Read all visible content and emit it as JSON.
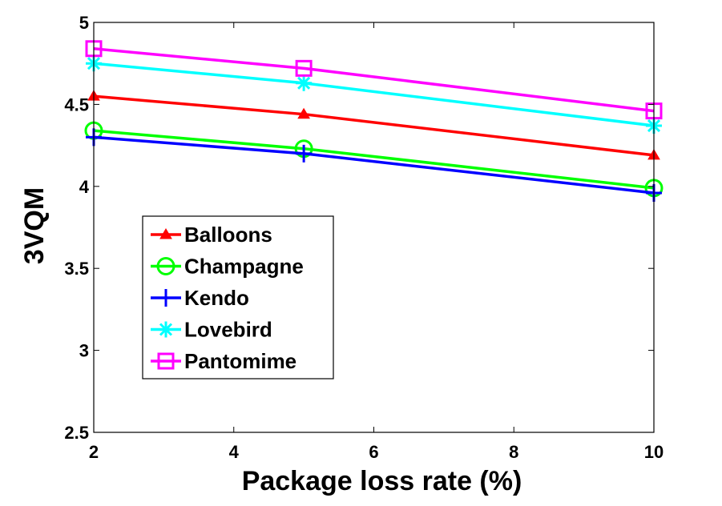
{
  "chart_data": {
    "type": "line",
    "title": "",
    "xlabel": "Package loss rate (%)",
    "ylabel": "3VQM",
    "xlim": [
      2,
      10
    ],
    "ylim": [
      2.5,
      5
    ],
    "x_ticks": [
      {
        "value": 2,
        "label": "2"
      },
      {
        "value": 4,
        "label": "4"
      },
      {
        "value": 6,
        "label": "6"
      },
      {
        "value": 8,
        "label": "8"
      },
      {
        "value": 10,
        "label": "10"
      }
    ],
    "y_ticks": [
      {
        "value": 2.5,
        "label": "2.5"
      },
      {
        "value": 3,
        "label": "3"
      },
      {
        "value": 3.5,
        "label": "3.5"
      },
      {
        "value": 4,
        "label": "4"
      },
      {
        "value": 4.5,
        "label": "4.5"
      },
      {
        "value": 5,
        "label": "5"
      }
    ],
    "x": [
      2,
      5,
      10
    ],
    "series": [
      {
        "name": "Balloons",
        "values": [
          4.55,
          4.44,
          4.19
        ],
        "color": "#ff0000",
        "marker": "triangle"
      },
      {
        "name": "Champagne",
        "values": [
          4.34,
          4.23,
          3.99
        ],
        "color": "#00ff00",
        "marker": "circle"
      },
      {
        "name": "Kendo",
        "values": [
          4.3,
          4.2,
          3.96
        ],
        "color": "#0000ff",
        "marker": "plus"
      },
      {
        "name": "Lovebird",
        "values": [
          4.75,
          4.63,
          4.37
        ],
        "color": "#00ffff",
        "marker": "asterisk"
      },
      {
        "name": "Pantomime",
        "values": [
          4.84,
          4.72,
          4.46
        ],
        "color": "#ff00ff",
        "marker": "square"
      }
    ],
    "legend_position": "lower-left",
    "grid": false
  }
}
